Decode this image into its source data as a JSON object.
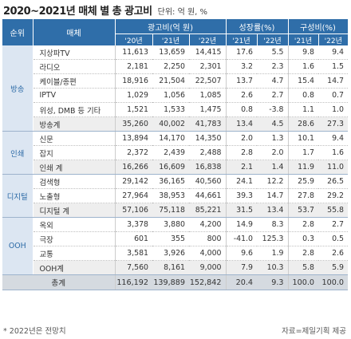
{
  "title": "2020~2021년 매체 별 총 광고비",
  "unit": "단위: 억 원, %",
  "headers": {
    "rank": "순위",
    "media": "매체",
    "ad_spend": "광고비(억 원)",
    "growth": "성장률(%)",
    "share": "구성비(%)",
    "years_spend": [
      "'20년",
      "'21년",
      "'22년"
    ],
    "years_growth": [
      "'21년",
      "'22년"
    ],
    "years_share": [
      "'21년",
      "'22년"
    ]
  },
  "sections": {
    "broadcast": "방송",
    "print": "인쇄",
    "digital": "디지털",
    "ooh": "OOH"
  },
  "rows": {
    "terrestrial": [
      "지상파TV",
      "11,613",
      "13,659",
      "14,415",
      "17.6",
      "5.5",
      "9.8",
      "9.4"
    ],
    "radio": [
      "라디오",
      "2,181",
      "2,250",
      "2,301",
      "3.2",
      "2.3",
      "1.6",
      "1.5"
    ],
    "cable": [
      "케이블/종편",
      "18,916",
      "21,504",
      "22,507",
      "13.7",
      "4.7",
      "15.4",
      "14.7"
    ],
    "iptv": [
      "IPTV",
      "1,029",
      "1,056",
      "1,085",
      "2.6",
      "2.7",
      "0.8",
      "0.7"
    ],
    "satellite": [
      "위성, DMB 등 기타",
      "1,521",
      "1,533",
      "1,475",
      "0.8",
      "-3.8",
      "1.1",
      "1.0"
    ],
    "broadcast_total": [
      "방송계",
      "35,260",
      "40,002",
      "41,783",
      "13.4",
      "4.5",
      "28.6",
      "27.3"
    ],
    "newspaper": [
      "신문",
      "13,894",
      "14,170",
      "14,350",
      "2.0",
      "1.3",
      "10.1",
      "9.4"
    ],
    "magazine": [
      "잡지",
      "2,372",
      "2,439",
      "2,488",
      "2.8",
      "2.0",
      "1.7",
      "1.6"
    ],
    "print_total": [
      "인쇄 계",
      "16,266",
      "16,609",
      "16,838",
      "2.1",
      "1.4",
      "11.9",
      "11.0"
    ],
    "search": [
      "검색형",
      "29,142",
      "36,165",
      "40,560",
      "24.1",
      "12.2",
      "25.9",
      "26.5"
    ],
    "display": [
      "노출형",
      "27,964",
      "38,953",
      "44,661",
      "39.3",
      "14.7",
      "27.8",
      "29.2"
    ],
    "digital_total": [
      "디지털 계",
      "57,106",
      "75,118",
      "85,221",
      "31.5",
      "13.4",
      "53.7",
      "55.8"
    ],
    "outdoor": [
      "옥외",
      "3,378",
      "3,880",
      "4,200",
      "14.9",
      "8.3",
      "2.8",
      "2.7"
    ],
    "cinema": [
      "극장",
      "601",
      "355",
      "800",
      "-41.0",
      "125.3",
      "0.3",
      "0.5"
    ],
    "transit": [
      "교통",
      "3,581",
      "3,926",
      "4,000",
      "9.6",
      "1.9",
      "2.8",
      "2.6"
    ],
    "ooh_total": [
      "OOH계",
      "7,560",
      "8,161",
      "9,000",
      "7.9",
      "10.3",
      "5.8",
      "5.9"
    ],
    "grand_total": [
      "총계",
      "116,192",
      "139,889",
      "152,842",
      "20.4",
      "9.3",
      "100.0",
      "100.0"
    ]
  },
  "footnote": "* 2022년은 전망치",
  "source": "자료=제일기획 제공",
  "colors": {
    "header_bg": "#2f6ea9",
    "section_bg": "#dce6f2",
    "section_text": "#2c6aa6",
    "subtotal_bg": "#eeeeee",
    "total_bg": "#d5dae0"
  }
}
